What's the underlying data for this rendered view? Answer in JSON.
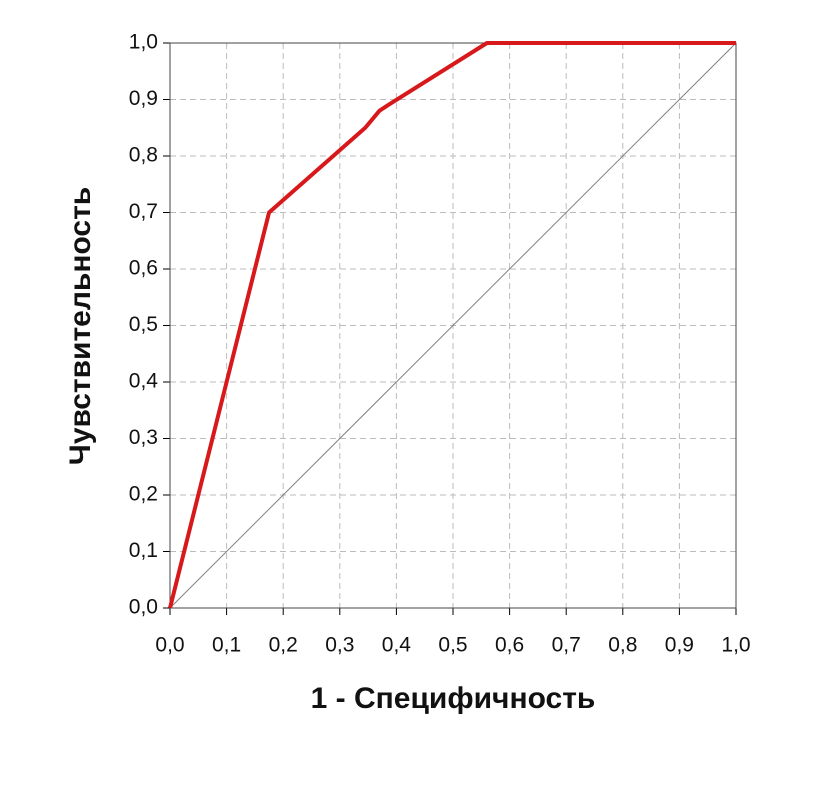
{
  "chart_data": {
    "type": "line",
    "xlabel": "1 - Специфичность",
    "ylabel": "Чувствительность",
    "xlim": [
      0,
      1
    ],
    "ylim": [
      0,
      1
    ],
    "xticks": [
      {
        "value": 0,
        "label": "0,0"
      },
      {
        "value": 0.1,
        "label": "0,1"
      },
      {
        "value": 0.2,
        "label": "0,2"
      },
      {
        "value": 0.3,
        "label": "0,3"
      },
      {
        "value": 0.4,
        "label": "0,4"
      },
      {
        "value": 0.5,
        "label": "0,5"
      },
      {
        "value": 0.6,
        "label": "0,6"
      },
      {
        "value": 0.7,
        "label": "0,7"
      },
      {
        "value": 0.8,
        "label": "0,8"
      },
      {
        "value": 0.9,
        "label": "0,9"
      },
      {
        "value": 1,
        "label": "1,0"
      }
    ],
    "yticks": [
      {
        "value": 0,
        "label": "0,0"
      },
      {
        "value": 0.1,
        "label": "0,1"
      },
      {
        "value": 0.2,
        "label": "0,2"
      },
      {
        "value": 0.3,
        "label": "0,3"
      },
      {
        "value": 0.4,
        "label": "0,4"
      },
      {
        "value": 0.5,
        "label": "0,5"
      },
      {
        "value": 0.6,
        "label": "0,6"
      },
      {
        "value": 0.7,
        "label": "0,7"
      },
      {
        "value": 0.8,
        "label": "0,8"
      },
      {
        "value": 0.9,
        "label": "0,9"
      },
      {
        "value": 1,
        "label": "1,0"
      }
    ],
    "grid": true,
    "series": [
      {
        "color": "#808080",
        "x": [
          0,
          1
        ],
        "values": [
          0,
          1
        ]
      },
      {
        "color": "#d7191c",
        "x": [
          0,
          0.165,
          0.175,
          0.345,
          0.37,
          0.385,
          0.56,
          1
        ],
        "values": [
          0,
          0.66,
          0.7,
          0.85,
          0.88,
          0.89,
          1,
          1
        ]
      }
    ]
  }
}
